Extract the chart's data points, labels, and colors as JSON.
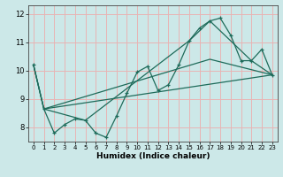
{
  "xlabel": "Humidex (Indice chaleur)",
  "bg_color": "#cce8e8",
  "grid_color": "#e8b4b4",
  "line_color": "#1e6b5a",
  "xlim": [
    -0.5,
    23.5
  ],
  "ylim": [
    7.5,
    12.3
  ],
  "yticks": [
    8,
    9,
    10,
    11,
    12
  ],
  "xticks": [
    0,
    1,
    2,
    3,
    4,
    5,
    6,
    7,
    8,
    9,
    10,
    11,
    12,
    13,
    14,
    15,
    16,
    17,
    18,
    19,
    20,
    21,
    22,
    23
  ],
  "series1_x": [
    0,
    1,
    2,
    3,
    4,
    5,
    6,
    7,
    8,
    9,
    10,
    11,
    12,
    13,
    14,
    15,
    16,
    17,
    18,
    19,
    20,
    21,
    22,
    23
  ],
  "series1_y": [
    10.2,
    8.65,
    7.8,
    8.1,
    8.3,
    8.25,
    7.8,
    7.65,
    8.4,
    9.2,
    9.95,
    10.15,
    9.3,
    9.5,
    10.2,
    11.05,
    11.5,
    11.75,
    11.85,
    11.25,
    10.35,
    10.35,
    10.75,
    9.85
  ],
  "series2_x": [
    1,
    23
  ],
  "series2_y": [
    8.65,
    9.85
  ],
  "series3_x": [
    0,
    1,
    17,
    23
  ],
  "series3_y": [
    10.2,
    8.65,
    10.4,
    9.85
  ],
  "series4_x": [
    0,
    1,
    5,
    15,
    17,
    21,
    23
  ],
  "series4_y": [
    10.2,
    8.65,
    8.25,
    11.05,
    11.75,
    10.35,
    9.85
  ]
}
